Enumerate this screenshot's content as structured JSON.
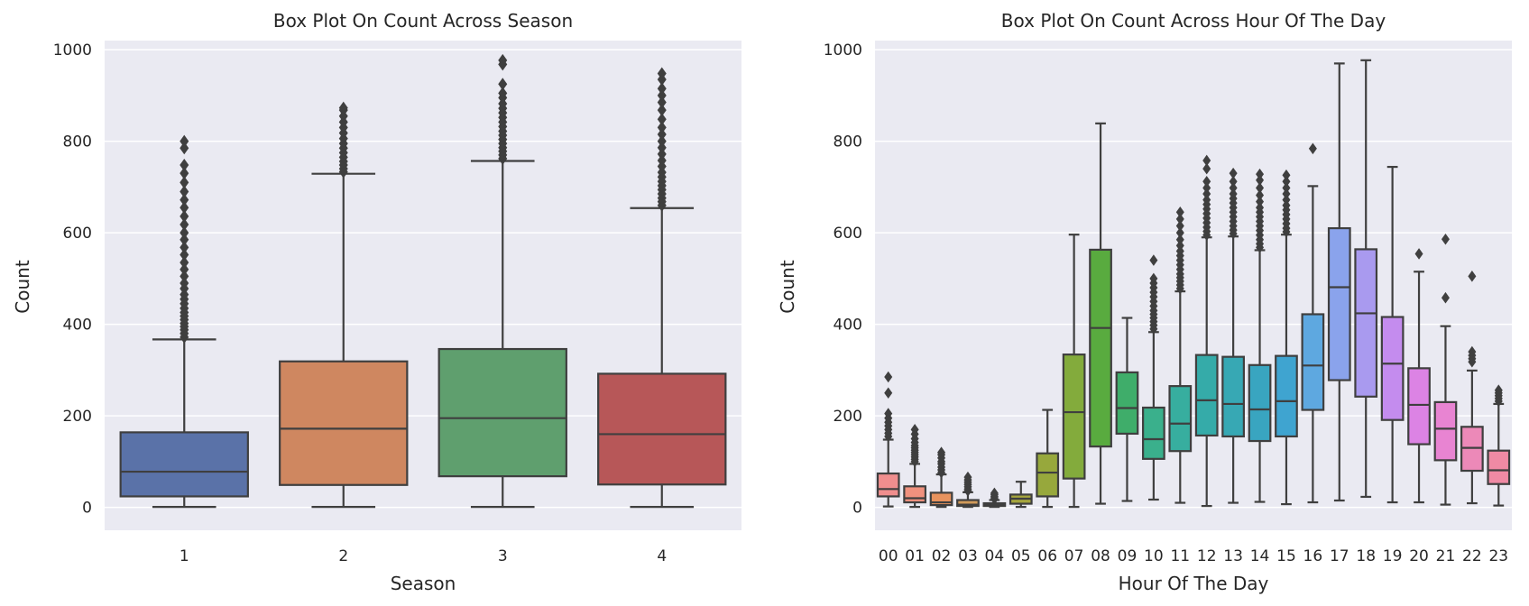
{
  "chart_data": [
    {
      "type": "box",
      "title": "Box Plot On Count Across Season",
      "xlabel": "Season",
      "ylabel": "Count",
      "ylim": [
        -50,
        1020
      ],
      "yticks": [
        0,
        200,
        400,
        600,
        800,
        1000
      ],
      "grid": true,
      "categories": [
        "1",
        "2",
        "3",
        "4"
      ],
      "colors": [
        "#5a72a8",
        "#cf8760",
        "#5f9f6e",
        "#b75758"
      ],
      "boxes": [
        {
          "category": "1",
          "min": 1,
          "q1": 24,
          "median": 78,
          "q3": 164,
          "whisker_high": 367,
          "outliers": [
            372,
            380,
            388,
            395,
            402,
            410,
            418,
            426,
            435,
            445,
            455,
            465,
            478,
            490,
            505,
            520,
            535,
            552,
            568,
            585,
            600,
            618,
            636,
            655,
            672,
            690,
            710,
            730,
            748,
            785,
            800
          ]
        },
        {
          "category": "2",
          "min": 1,
          "q1": 49,
          "median": 172,
          "q3": 319,
          "whisker_high": 729,
          "outliers": [
            733,
            740,
            748,
            756,
            765,
            775,
            785,
            795,
            806,
            818,
            830,
            842,
            855,
            868,
            873
          ]
        },
        {
          "category": "3",
          "min": 1,
          "q1": 68,
          "median": 195,
          "q3": 346,
          "whisker_high": 757,
          "outliers": [
            762,
            770,
            778,
            786,
            795,
            804,
            813,
            822,
            832,
            842,
            852,
            862,
            872,
            882,
            895,
            905,
            925,
            968,
            977
          ]
        },
        {
          "category": "4",
          "min": 1,
          "q1": 50,
          "median": 160,
          "q3": 292,
          "whisker_high": 654,
          "outliers": [
            660,
            668,
            676,
            685,
            694,
            703,
            712,
            722,
            732,
            745,
            758,
            772,
            786,
            800,
            815,
            830,
            848,
            868,
            885,
            900,
            915,
            935,
            948
          ]
        }
      ]
    },
    {
      "type": "box",
      "title": "Box Plot On Count Across Hour Of The Day",
      "xlabel": "Hour Of The Day",
      "ylabel": "Count",
      "ylim": [
        -50,
        1020
      ],
      "yticks": [
        0,
        200,
        400,
        600,
        800,
        1000
      ],
      "grid": true,
      "categories": [
        "00",
        "01",
        "02",
        "03",
        "04",
        "05",
        "06",
        "07",
        "08",
        "09",
        "10",
        "11",
        "12",
        "13",
        "14",
        "15",
        "16",
        "17",
        "18",
        "19",
        "20",
        "21",
        "22",
        "23"
      ],
      "colors": [
        "#f08e8e",
        "#f0917e",
        "#e8935e",
        "#d09a5a",
        "#b8a052",
        "#a6a63e",
        "#97a83c",
        "#83ab3c",
        "#59ab3f",
        "#3fad6a",
        "#3ab08c",
        "#37ae9f",
        "#35aba9",
        "#37a8b4",
        "#39a5c0",
        "#3fa4d0",
        "#5ea8e0",
        "#8aa3ec",
        "#a99aef",
        "#c48cee",
        "#dc83e4",
        "#e884d2",
        "#ec89b8",
        "#f08aa4"
      ],
      "boxes": [
        {
          "category": "00",
          "min": 2,
          "q1": 24,
          "median": 40,
          "q3": 74,
          "whisker_high": 148,
          "outliers": [
            155,
            162,
            170,
            178,
            186,
            195,
            205,
            250,
            285
          ]
        },
        {
          "category": "01",
          "min": 1,
          "q1": 11,
          "median": 20,
          "q3": 46,
          "whisker_high": 95,
          "outliers": [
            100,
            105,
            110,
            115,
            120,
            125,
            130,
            135,
            142,
            150,
            160,
            170
          ]
        },
        {
          "category": "02",
          "min": 1,
          "q1": 5,
          "median": 11,
          "q3": 32,
          "whisker_high": 72,
          "outliers": [
            76,
            82,
            88,
            95,
            100,
            108,
            115,
            120
          ]
        },
        {
          "category": "03",
          "min": 1,
          "q1": 3,
          "median": 6,
          "q3": 16,
          "whisker_high": 33,
          "outliers": [
            36,
            40,
            45,
            50,
            55,
            60,
            66
          ]
        },
        {
          "category": "04",
          "min": 1,
          "q1": 3,
          "median": 6,
          "q3": 9,
          "whisker_high": 16,
          "outliers": [
            18,
            21,
            24,
            28,
            31
          ]
        },
        {
          "category": "05",
          "min": 1,
          "q1": 8,
          "median": 19,
          "q3": 28,
          "whisker_high": 56,
          "outliers": []
        },
        {
          "category": "06",
          "min": 1,
          "q1": 24,
          "median": 76,
          "q3": 118,
          "whisker_high": 213,
          "outliers": []
        },
        {
          "category": "07",
          "min": 1,
          "q1": 63,
          "median": 208,
          "q3": 334,
          "whisker_high": 596,
          "outliers": []
        },
        {
          "category": "08",
          "min": 8,
          "q1": 133,
          "median": 392,
          "q3": 563,
          "whisker_high": 839,
          "outliers": []
        },
        {
          "category": "09",
          "min": 14,
          "q1": 161,
          "median": 217,
          "q3": 295,
          "whisker_high": 414,
          "outliers": []
        },
        {
          "category": "10",
          "min": 17,
          "q1": 106,
          "median": 149,
          "q3": 218,
          "whisker_high": 383,
          "outliers": [
            390,
            398,
            406,
            414,
            422,
            430,
            440,
            450,
            460,
            470,
            480,
            490,
            500,
            540
          ]
        },
        {
          "category": "11",
          "min": 10,
          "q1": 123,
          "median": 183,
          "q3": 265,
          "whisker_high": 472,
          "outliers": [
            478,
            486,
            494,
            502,
            510,
            520,
            530,
            540,
            550,
            560,
            572,
            585,
            600,
            615,
            630,
            645
          ]
        },
        {
          "category": "12",
          "min": 3,
          "q1": 157,
          "median": 234,
          "q3": 333,
          "whisker_high": 590,
          "outliers": [
            595,
            603,
            612,
            622,
            632,
            642,
            652,
            662,
            672,
            685,
            698,
            712,
            740,
            758
          ]
        },
        {
          "category": "13",
          "min": 10,
          "q1": 155,
          "median": 226,
          "q3": 329,
          "whisker_high": 592,
          "outliers": [
            598,
            606,
            615,
            625,
            635,
            645,
            655,
            665,
            675,
            685,
            698,
            712,
            730
          ]
        },
        {
          "category": "14",
          "min": 12,
          "q1": 145,
          "median": 214,
          "q3": 311,
          "whisker_high": 562,
          "outliers": [
            568,
            576,
            585,
            595,
            605,
            615,
            625,
            635,
            645,
            655,
            668,
            682,
            698,
            715,
            728
          ]
        },
        {
          "category": "15",
          "min": 7,
          "q1": 155,
          "median": 232,
          "q3": 331,
          "whisker_high": 596,
          "outliers": [
            602,
            610,
            620,
            630,
            640,
            650,
            660,
            672,
            685,
            698,
            712,
            726
          ]
        },
        {
          "category": "16",
          "min": 11,
          "q1": 213,
          "median": 310,
          "q3": 422,
          "whisker_high": 702,
          "outliers": [
            784
          ]
        },
        {
          "category": "17",
          "min": 15,
          "q1": 278,
          "median": 481,
          "q3": 610,
          "whisker_high": 970,
          "outliers": []
        },
        {
          "category": "18",
          "min": 23,
          "q1": 242,
          "median": 424,
          "q3": 564,
          "whisker_high": 977,
          "outliers": []
        },
        {
          "category": "19",
          "min": 11,
          "q1": 191,
          "median": 314,
          "q3": 416,
          "whisker_high": 744,
          "outliers": []
        },
        {
          "category": "20",
          "min": 11,
          "q1": 138,
          "median": 224,
          "q3": 304,
          "whisker_high": 515,
          "outliers": [
            554
          ]
        },
        {
          "category": "21",
          "min": 6,
          "q1": 103,
          "median": 172,
          "q3": 230,
          "whisker_high": 396,
          "outliers": [
            458,
            586
          ]
        },
        {
          "category": "22",
          "min": 9,
          "q1": 80,
          "median": 130,
          "q3": 176,
          "whisker_high": 299,
          "outliers": [
            318,
            325,
            332,
            340,
            505
          ]
        },
        {
          "category": "23",
          "min": 4,
          "q1": 51,
          "median": 81,
          "q3": 124,
          "whisker_high": 226,
          "outliers": [
            232,
            238,
            244,
            250,
            256
          ]
        }
      ]
    }
  ]
}
